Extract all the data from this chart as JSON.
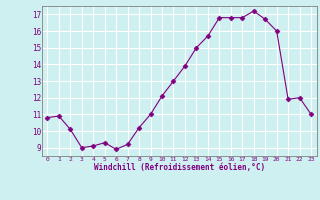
{
  "x": [
    0,
    1,
    2,
    3,
    4,
    5,
    6,
    7,
    8,
    9,
    10,
    11,
    12,
    13,
    14,
    15,
    16,
    17,
    18,
    19,
    20,
    21,
    22,
    23
  ],
  "y": [
    10.8,
    10.9,
    10.1,
    9.0,
    9.1,
    9.3,
    8.9,
    9.2,
    10.2,
    11.0,
    12.1,
    13.0,
    13.9,
    15.0,
    15.7,
    16.8,
    16.8,
    16.8,
    17.2,
    16.7,
    16.0,
    11.9,
    12.0,
    11.0
  ],
  "line_color": "#800080",
  "marker": "D",
  "marker_size": 2.5,
  "bg_color": "#cff0f0",
  "grid_color": "#ffffff",
  "xlabel": "Windchill (Refroidissement éolien,°C)",
  "xlabel_color": "#800080",
  "tick_color": "#800080",
  "spine_color": "#808080",
  "ylim": [
    8.5,
    17.5
  ],
  "xlim": [
    -0.5,
    23.5
  ],
  "yticks": [
    9,
    10,
    11,
    12,
    13,
    14,
    15,
    16,
    17
  ],
  "xticks": [
    0,
    1,
    2,
    3,
    4,
    5,
    6,
    7,
    8,
    9,
    10,
    11,
    12,
    13,
    14,
    15,
    16,
    17,
    18,
    19,
    20,
    21,
    22,
    23
  ]
}
